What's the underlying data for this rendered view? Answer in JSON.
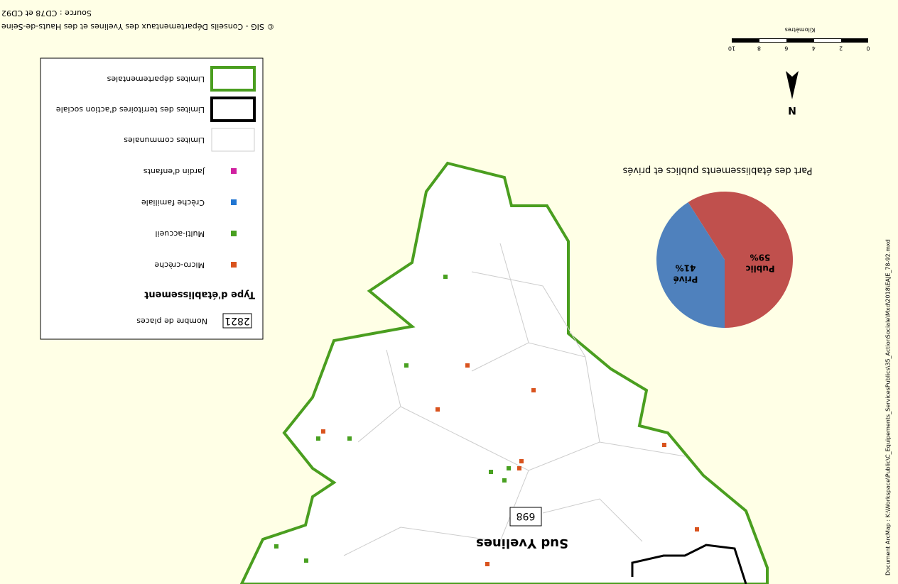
{
  "document_path": "Document ArcMap : K:\\Workspace\\Public\\C_Equipements_ServicesPublics\\35_ActionSociale\\Mxd\\2018\\EAJE_78-92.mxd",
  "scale_bar": {
    "labels": [
      "0",
      "2",
      "4",
      "6",
      "8",
      "10"
    ],
    "unit": "Kilomètres"
  },
  "north": "N",
  "pie": {
    "title": "Part des établissements publics et privés",
    "categories": [
      "Public",
      "Privé"
    ],
    "values": [
      59,
      41
    ],
    "value_labels": [
      "59%",
      "41%"
    ],
    "colors": [
      "#c0504d",
      "#4f81bd"
    ]
  },
  "map": {
    "territory": "Sud Yvelines",
    "places": "698"
  },
  "legend": {
    "places_count": "2821",
    "places_label": "Nombre de places",
    "type_title": "Type d'établissement",
    "items": [
      "Micro-crèche",
      "Multi-accueil",
      "Crèche familiale",
      "Jardin d'enfants",
      "Limites communales",
      "Limites des territoires d'action sociale",
      "Limites départementales"
    ]
  },
  "credits": {
    "copyright": "© SIG - Conseils Départementaux des Yvelines et des Hauts-de-Seine",
    "source": "Source : CD78 et CD92"
  }
}
